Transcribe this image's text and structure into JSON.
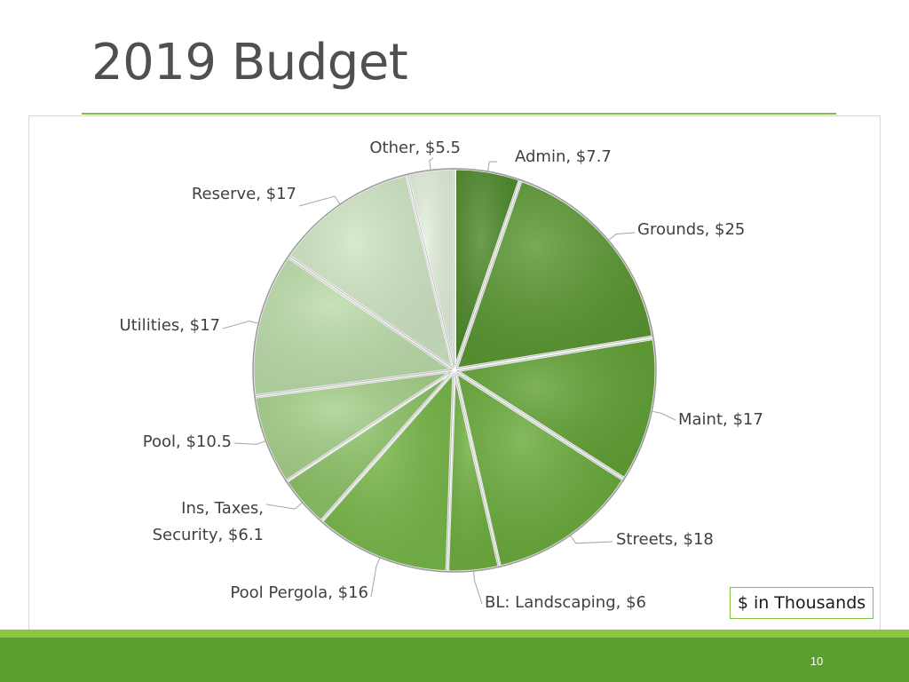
{
  "slide": {
    "title": "2019 Budget",
    "page_number": "10",
    "units_note": "$ in Thousands"
  },
  "colors": {
    "accent": "#7fc241",
    "footer": "#5a9e2f"
  },
  "chart_data": {
    "type": "pie",
    "title": "",
    "unit": "$ in Thousands",
    "slices": [
      {
        "label": "Admin",
        "value": 7.7,
        "text": "Admin, $7.7",
        "color": "#4f8a2b"
      },
      {
        "label": "Grounds",
        "value": 25,
        "text": "Grounds, $25",
        "color": "#5a9732"
      },
      {
        "label": "Maint",
        "value": 17,
        "text": "Maint, $17",
        "color": "#62a235"
      },
      {
        "label": "Streets",
        "value": 18,
        "text": "Streets, $18",
        "color": "#6aab3b"
      },
      {
        "label": "BL: Landscaping",
        "value": 6,
        "text": "BL: Landscaping, $6",
        "color": "#6faf3f"
      },
      {
        "label": "Pool Pergola",
        "value": 16,
        "text": "Pool Pergola, $16",
        "color": "#78b849"
      },
      {
        "label": "Ins, Taxes, Security",
        "value": 6.1,
        "text": "Ins, Taxes, Security, $6.1",
        "lines": [
          "Ins, Taxes,",
          "Security, $6.1"
        ],
        "color": "#8cc266"
      },
      {
        "label": "Pool",
        "value": 10.5,
        "text": "Pool, $10.5",
        "color": "#a6d08a"
      },
      {
        "label": "Utilities",
        "value": 17,
        "text": "Utilities, $17",
        "color": "#bcdcaa"
      },
      {
        "label": "Reserve",
        "value": 17,
        "text": "Reserve, $17",
        "color": "#cfe5c3"
      },
      {
        "label": "Other",
        "value": 5.5,
        "text": "Other, $5.5",
        "color": "#e2efdb"
      }
    ]
  }
}
